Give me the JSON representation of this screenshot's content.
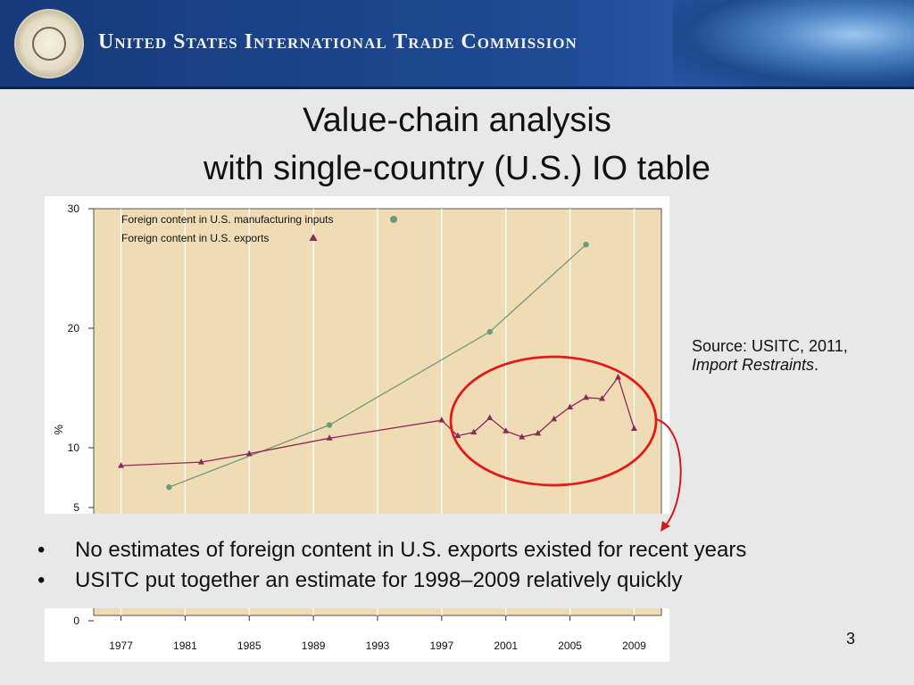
{
  "header": {
    "org_title": "United States International Trade Commission",
    "seal_icon": "usitc-seal-icon",
    "globe_icon": "globe-icon",
    "colors": {
      "bar": "#1e4a94",
      "text": "#f2f2f2"
    }
  },
  "slide": {
    "title_line1": "Value-chain analysis",
    "title_line2": "with single-country (U.S.) IO table",
    "page_number": "3"
  },
  "source_note": {
    "prefix": "Source: USITC, 2011,",
    "work": "Import Restraints",
    "suffix": "."
  },
  "bullets": {
    "marker": "•",
    "items": [
      "No estimates of foreign content in U.S. exports existed for recent years",
      "USITC put together an estimate for 1998–2009 relatively quickly"
    ]
  },
  "chart_data": {
    "type": "line",
    "xlabel": "",
    "ylabel": "%",
    "x_ticks": [
      "1977",
      "1981",
      "1985",
      "1989",
      "1993",
      "1997",
      "2001",
      "2005",
      "2009"
    ],
    "y_ticks": [
      "0",
      "5",
      "10",
      "20",
      "30"
    ],
    "xlim": [
      1975.3,
      2010.7
    ],
    "grid": true,
    "legend_position": "top-left",
    "colors": {
      "plot_bg": "#f0dcb4",
      "highlight_circle": "#e21a1a",
      "arrow": "#d31a1a"
    },
    "series": [
      {
        "name": "Foreign content in U.S. manufacturing inputs",
        "marker": "circle",
        "color": "#6f9a7a",
        "x": [
          1980,
          1990,
          2000,
          2006
        ],
        "y": [
          6.7,
          11.9,
          19.7,
          27
        ]
      },
      {
        "name": "Foreign content in U.S. exports",
        "marker": "triangle",
        "color": "#8a2a5a",
        "x": [
          1977,
          1982,
          1985,
          1990,
          1997,
          1998,
          1999,
          2000,
          2001,
          2002,
          2003,
          2004,
          2005,
          2006,
          2007,
          2008,
          2009
        ],
        "y": [
          8.5,
          8.8,
          9.5,
          10.8,
          12.3,
          11.0,
          11.3,
          12.5,
          11.4,
          10.9,
          11.2,
          12.4,
          13.4,
          14.2,
          14.1,
          15.9,
          11.6
        ]
      }
    ]
  }
}
